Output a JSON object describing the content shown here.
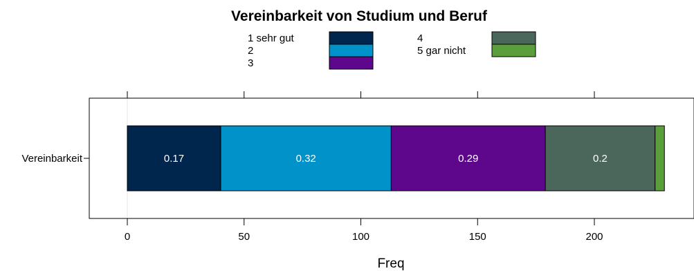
{
  "chart_data": {
    "type": "bar",
    "orientation": "horizontal",
    "stacked": true,
    "title": "Vereinbarkeit von Studium und Beruf",
    "xlabel": "Freq",
    "ylabel": "",
    "categories": [
      "Vereinbarkeit"
    ],
    "xlim": [
      -4,
      236
    ],
    "xticks": [
      0,
      50,
      100,
      150,
      200
    ],
    "xtick_labels": [
      "0",
      "50",
      "100",
      "150",
      "200"
    ],
    "legend_position": "top",
    "series": [
      {
        "name": "1 sehr gut",
        "values": [
          40
        ],
        "label": "0.17",
        "color": "#00264d"
      },
      {
        "name": "2",
        "values": [
          73
        ],
        "label": "0.32",
        "color": "#0092c8"
      },
      {
        "name": "3",
        "values": [
          66
        ],
        "label": "0.29",
        "color": "#5e068c"
      },
      {
        "name": "4",
        "values": [
          47
        ],
        "label": "0.2",
        "color": "#4b675c"
      },
      {
        "name": "5 gar nicht",
        "values": [
          4
        ],
        "label": "",
        "color": "#5a9f3c"
      }
    ]
  }
}
